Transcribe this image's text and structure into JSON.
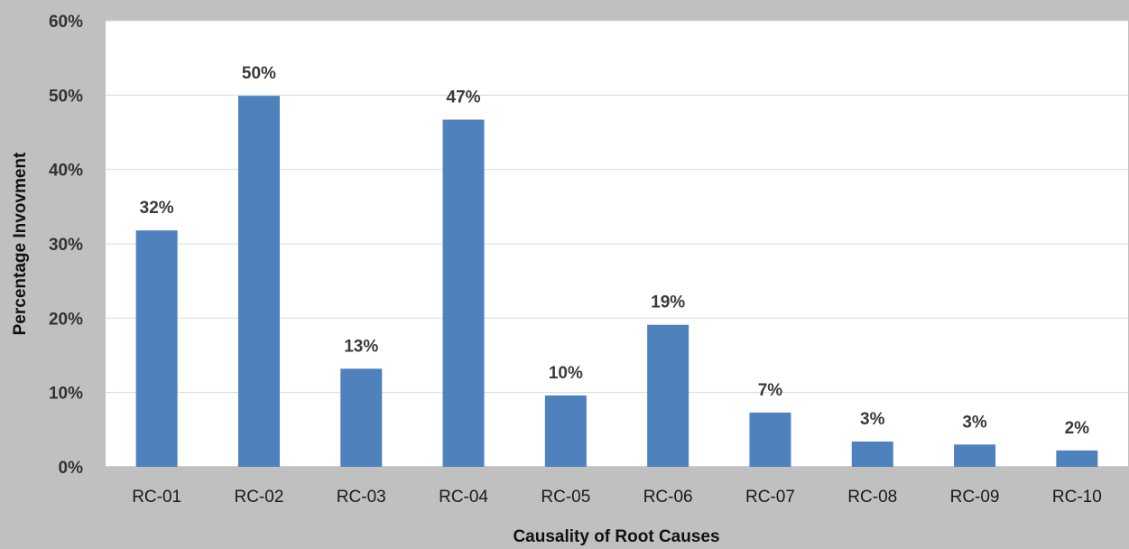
{
  "chart_data": {
    "type": "bar",
    "categories": [
      "RC-01",
      "RC-02",
      "RC-03",
      "RC-04",
      "RC-05",
      "RC-06",
      "RC-07",
      "RC-08",
      "RC-09",
      "RC-10"
    ],
    "values": [
      31.8,
      49.9,
      13.2,
      46.7,
      9.6,
      19.1,
      7.3,
      3.4,
      3.0,
      2.2
    ],
    "data_labels": [
      "32%",
      "50%",
      "13%",
      "47%",
      "10%",
      "19%",
      "7%",
      "3%",
      "3%",
      "2%"
    ],
    "y_ticks": [
      0,
      10,
      20,
      30,
      40,
      50,
      60
    ],
    "y_tick_labels": [
      "0%",
      "10%",
      "20%",
      "30%",
      "40%",
      "50%",
      "60%"
    ],
    "ylim": [
      0,
      60
    ],
    "xlabel": "Causality of Root Causes",
    "ylabel": "Percentage Invovment",
    "title": "",
    "grid": true,
    "legend": "none",
    "colors": {
      "bar": "#4f81bd",
      "grid": "#d9d9d9",
      "axis": "#bfbfbf",
      "background": "#c0c0c0",
      "plot_background": "#ffffff"
    }
  }
}
